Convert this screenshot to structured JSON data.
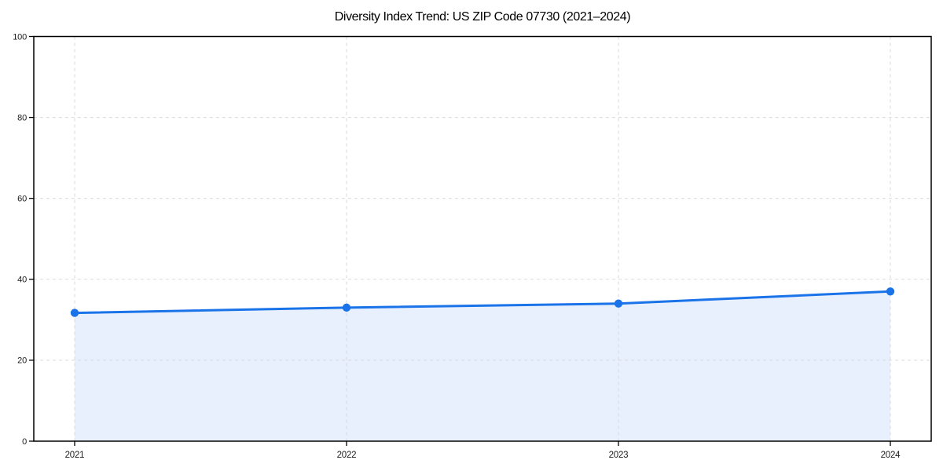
{
  "chart_data": {
    "type": "area",
    "title": "Diversity Index Trend: US ZIP Code 07730 (2021–2024)",
    "categories": [
      "2021",
      "2022",
      "2023",
      "2024"
    ],
    "values": [
      31.7,
      33,
      34,
      37
    ],
    "xlabel": "",
    "ylabel": "",
    "ylim": [
      0,
      100
    ],
    "yticks": [
      0,
      20,
      40,
      60,
      80,
      100
    ],
    "grid": "dashed",
    "legend_position": "none",
    "colors": {
      "line": "#1a73e8",
      "marker": "#1a73e8",
      "area_fill": "#e8f0fd",
      "gridline": "#d9d9d9",
      "axis": "#000000",
      "title_text": "#000000",
      "tick_text": "#1a1a1a"
    }
  }
}
